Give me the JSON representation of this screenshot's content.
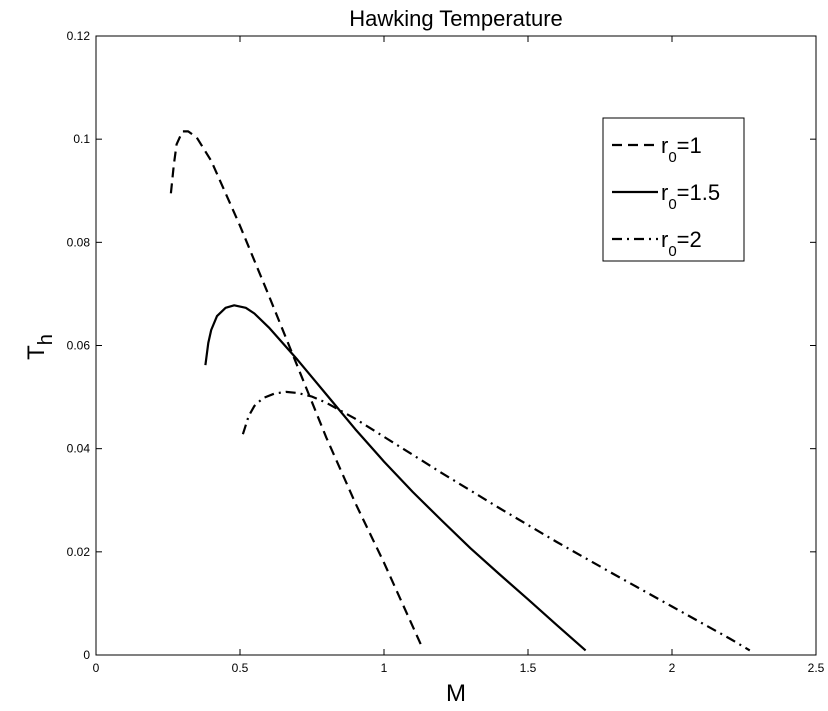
{
  "chart_data": {
    "type": "line",
    "title": "Hawking Temperature",
    "xlabel": "M",
    "ylabel": {
      "base": "T",
      "sub": "h"
    },
    "xlim": [
      0,
      2.5
    ],
    "ylim": [
      0,
      0.12
    ],
    "xticks": [
      "0",
      "0.5",
      "1",
      "1.5",
      "2",
      "2.5"
    ],
    "yticks": [
      "0",
      "0.02",
      "0.04",
      "0.06",
      "0.08",
      "0.1",
      "0.12"
    ],
    "grid": false,
    "legend_position": "top-right",
    "series": [
      {
        "name": "r0=1",
        "label_base": "r",
        "label_sub": "0",
        "label_tail": "=1",
        "style": "dashed",
        "x": [
          0.26,
          0.27,
          0.28,
          0.3,
          0.32,
          0.35,
          0.4,
          0.5,
          0.6,
          0.7,
          0.8,
          0.9,
          1.0,
          1.1,
          1.13
        ],
        "y": [
          0.0895,
          0.095,
          0.099,
          0.1015,
          0.1015,
          0.1003,
          0.0958,
          0.0832,
          0.0697,
          0.0559,
          0.0421,
          0.0295,
          0.0179,
          0.0055,
          0.0018
        ]
      },
      {
        "name": "r0=1.5",
        "label_base": "r",
        "label_sub": "0",
        "label_tail": "=1.5",
        "style": "solid",
        "x": [
          0.38,
          0.39,
          0.4,
          0.42,
          0.45,
          0.48,
          0.52,
          0.55,
          0.6,
          0.7,
          0.8,
          0.9,
          1.0,
          1.1,
          1.2,
          1.3,
          1.4,
          1.5,
          1.6,
          1.7
        ],
        "y": [
          0.0562,
          0.0605,
          0.063,
          0.0657,
          0.0673,
          0.0678,
          0.0673,
          0.0662,
          0.0635,
          0.0572,
          0.0505,
          0.0438,
          0.0375,
          0.0316,
          0.0261,
          0.0207,
          0.0157,
          0.0108,
          0.0058,
          0.0009
        ]
      },
      {
        "name": "r0=2",
        "label_base": "r",
        "label_sub": "0",
        "label_tail": "=2",
        "style": "dashdot",
        "x": [
          0.51,
          0.53,
          0.55,
          0.58,
          0.62,
          0.66,
          0.7,
          0.75,
          0.8,
          0.9,
          1.0,
          1.2,
          1.4,
          1.6,
          1.8,
          2.0,
          2.2,
          2.27
        ],
        "y": [
          0.0428,
          0.0463,
          0.0483,
          0.0498,
          0.0507,
          0.051,
          0.0508,
          0.0501,
          0.0489,
          0.0458,
          0.0423,
          0.0353,
          0.0285,
          0.0219,
          0.0156,
          0.0094,
          0.0032,
          0.0009
        ]
      }
    ]
  }
}
